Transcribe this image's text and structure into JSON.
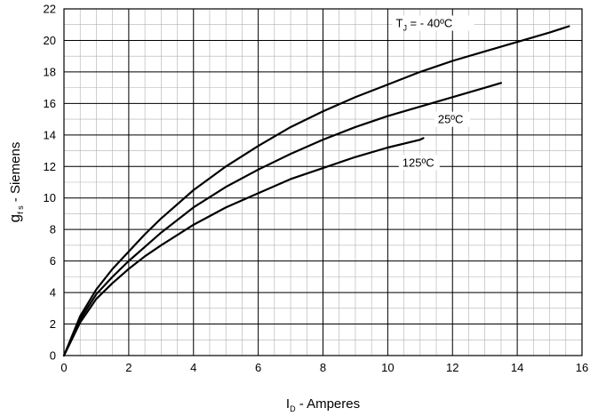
{
  "chart_data": {
    "type": "line",
    "xlabel": "I",
    "xlabel_sub": "D",
    "xlabel_rest": " - Amperes",
    "ylabel": "g",
    "ylabel_sub": "f s",
    "ylabel_rest": " - Siemens",
    "xlim": [
      0,
      16
    ],
    "ylim": [
      0,
      22
    ],
    "xticks": [
      0,
      2,
      4,
      6,
      8,
      10,
      12,
      14,
      16
    ],
    "yticks": [
      0,
      2,
      4,
      6,
      8,
      10,
      12,
      14,
      16,
      18,
      20,
      22
    ],
    "grid": true,
    "minor_grid": true,
    "line_color": "#000000",
    "series": [
      {
        "name_prefix": "T",
        "name_sub": "J",
        "name": " = - 40ºC",
        "x": [
          0,
          0.5,
          1,
          1.5,
          2,
          2.5,
          3,
          4,
          5,
          6,
          7,
          8,
          9,
          10,
          11,
          12,
          13,
          14,
          15,
          15.6
        ],
        "y": [
          0,
          2.5,
          4.2,
          5.5,
          6.6,
          7.7,
          8.7,
          10.5,
          12.0,
          13.3,
          14.5,
          15.5,
          16.4,
          17.2,
          18.0,
          18.7,
          19.3,
          19.9,
          20.5,
          20.9
        ]
      },
      {
        "name": "25ºC",
        "x": [
          0,
          0.5,
          1,
          1.5,
          2,
          2.5,
          3,
          4,
          5,
          6,
          7,
          8,
          9,
          10,
          11,
          12,
          13,
          13.5
        ],
        "y": [
          0,
          2.3,
          3.9,
          5.0,
          6.0,
          6.9,
          7.8,
          9.4,
          10.7,
          11.8,
          12.8,
          13.7,
          14.5,
          15.2,
          15.8,
          16.4,
          17.0,
          17.3
        ]
      },
      {
        "name": "125ºC",
        "x": [
          0,
          0.5,
          1,
          1.5,
          2,
          2.5,
          3,
          4,
          5,
          6,
          7,
          8,
          9,
          10,
          11,
          11.1
        ],
        "y": [
          0,
          2.1,
          3.6,
          4.6,
          5.5,
          6.3,
          7.0,
          8.3,
          9.4,
          10.3,
          11.2,
          11.9,
          12.6,
          13.2,
          13.7,
          13.8
        ]
      }
    ]
  }
}
